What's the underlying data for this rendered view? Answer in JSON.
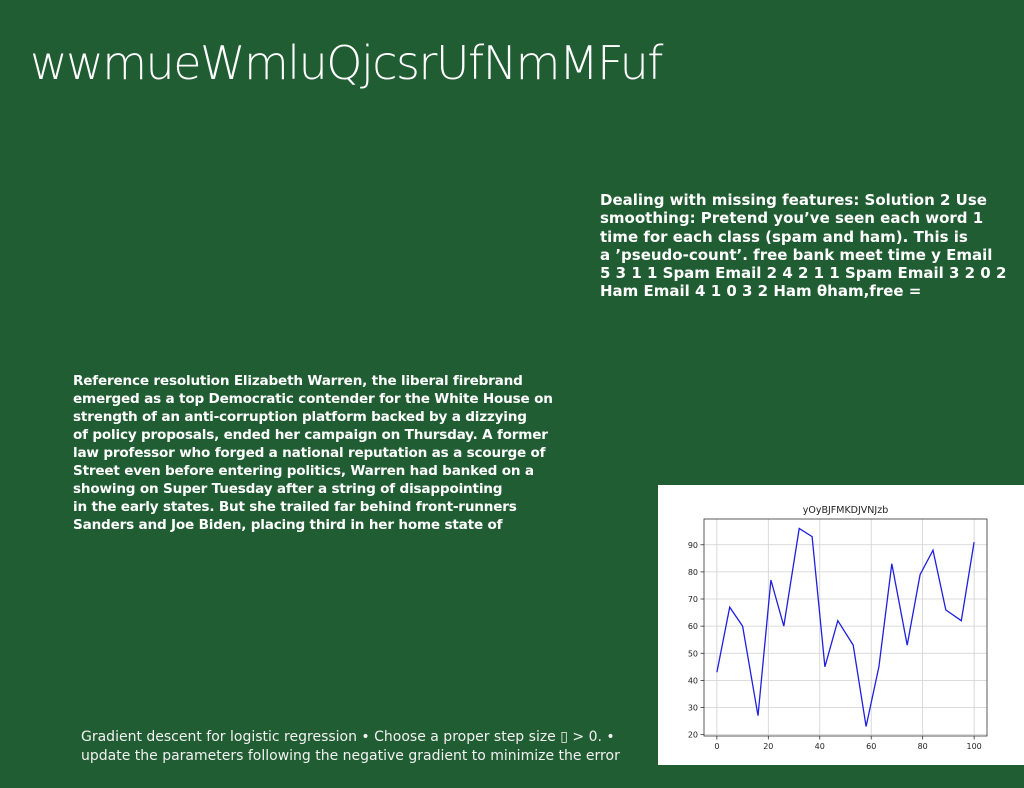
{
  "slide": {
    "title": "wwmueWmluQjcsrUfNmMFuf",
    "right_text_lines": [
      "Dealing with missing features: Solution 2 Use",
      "smoothing: Pretend you’ve seen each word 1",
      "time for each class (spam and ham). This is",
      "a ’pseudo-count’. free bank meet time y Email",
      "5 3 1 1 Spam Email 2 4 2 1 1 Spam Email 3 2 0 2",
      "Ham Email 4 1 0 3 2 Ham θham,free ="
    ],
    "left_text_lines": [
      "Reference resolution Elizabeth Warren, the liberal firebrand",
      "emerged as a top Democratic contender for the White House on",
      "strength of an anti-corruption platform backed by a dizzying",
      "of policy proposals, ended her campaign on Thursday. A former",
      "law professor who forged a national reputation as a scourge of",
      "Street even before entering politics, Warren had banked on a",
      "showing on Super Tuesday after a string of disappointing",
      "in the early states. But she trailed far behind front-runners",
      "Sanders and Joe Biden, placing third in her home state of"
    ],
    "footer_lines": [
      "Gradient descent for logistic regression • Choose a proper step size ▯ > 0. •",
      "update the parameters following the negative gradient to minimize the error"
    ]
  },
  "chart_data": {
    "type": "line",
    "title": "yOyBJFMKDJVNJzb",
    "xlabel": "",
    "ylabel": "",
    "x": [
      0,
      5,
      10,
      16,
      21,
      26,
      32,
      37,
      42,
      47,
      53,
      58,
      63,
      68,
      74,
      79,
      84,
      89,
      95,
      100
    ],
    "series": [
      {
        "values": [
          43,
          67,
          60,
          27,
          77,
          60,
          96,
          93,
          45,
          62,
          53,
          23,
          45,
          83,
          53,
          79,
          88,
          66,
          62,
          91
        ]
      }
    ],
    "xlim": [
      -5,
      105
    ],
    "ylim": [
      19.5,
      99.5
    ],
    "xticks": [
      0,
      20,
      40,
      60,
      80,
      100
    ],
    "yticks": [
      20,
      30,
      40,
      50,
      60,
      70,
      80,
      90
    ],
    "grid": true,
    "line_color": "#1f1fe0"
  }
}
